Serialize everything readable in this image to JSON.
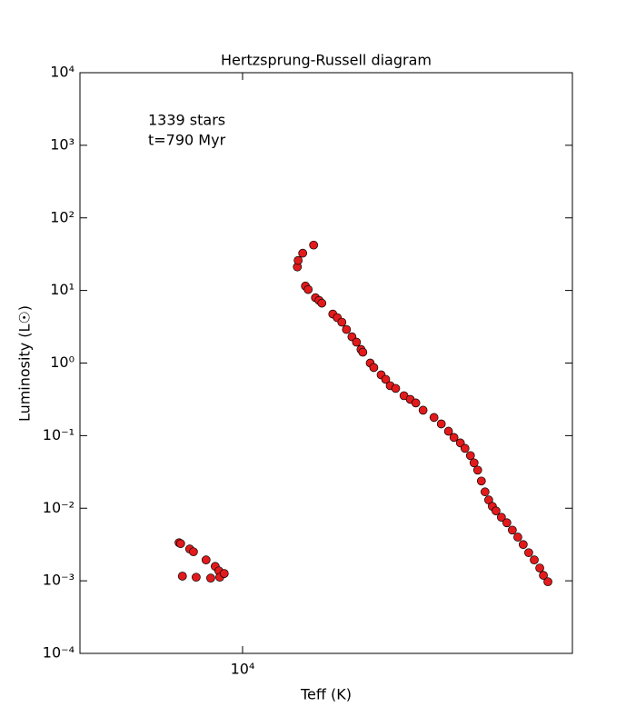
{
  "chart_data": {
    "type": "scatter",
    "title": "Hertzsprung-Russell diagram",
    "x_label": "Teff (K)",
    "y_label": "Luminosity (L☉)",
    "annotations": [
      "1339 stars",
      "t=790 Myr"
    ],
    "x_log": true,
    "y_log": true,
    "color": "#e31a1c",
    "xlim": [
      19000,
      2720
    ],
    "ylim": [
      0.0001,
      10000
    ],
    "xticks": [
      {
        "value": 10000,
        "label": "10⁴"
      }
    ],
    "yticks": [
      {
        "value": 0.0001,
        "label": "10⁻⁴"
      },
      {
        "value": 0.001,
        "label": "10⁻³"
      },
      {
        "value": 0.01,
        "label": "10⁻²"
      },
      {
        "value": 0.1,
        "label": "10⁻¹"
      },
      {
        "value": 1,
        "label": "10⁰"
      },
      {
        "value": 10,
        "label": "10¹"
      },
      {
        "value": 100,
        "label": "10²"
      },
      {
        "value": 1000,
        "label": "10³"
      },
      {
        "value": 10000,
        "label": "10⁴"
      }
    ],
    "x": [
      12850,
      12770,
      12320,
      12140,
      12680,
      12010,
      11550,
      11340,
      11140,
      10980,
      10940,
      10750,
      8055,
      8030,
      7887,
      7554,
      7802,
      7718,
      7499,
      7393,
      7313,
      7004,
      6880,
      6757,
      6636,
      6494,
      6378,
      6266,
      6221,
      6042,
      5957,
      5787,
      5684,
      5583,
      5464,
      5288,
      5158,
      5047,
      4904,
      4697,
      4564,
      4436,
      4341,
      4233,
      4156,
      4068,
      4010,
      3953,
      3896,
      3840,
      3785,
      3731,
      3678,
      3600,
      3523,
      3448,
      3374,
      3303,
      3232,
      3162,
      3094,
      3050,
      2996
    ],
    "values": [
      0.00335,
      0.00325,
      0.00274,
      0.00251,
      0.00116,
      0.00112,
      0.00194,
      0.00109,
      0.00158,
      0.00137,
      0.00112,
      0.00126,
      21.1,
      25.9,
      32.6,
      42.2,
      11.5,
      10.3,
      7.94,
      7.29,
      6.68,
      4.73,
      4.22,
      3.65,
      2.9,
      2.3,
      1.94,
      1.54,
      1.41,
      1.0,
      0.866,
      0.688,
      0.596,
      0.487,
      0.447,
      0.355,
      0.316,
      0.282,
      0.224,
      0.178,
      0.145,
      0.115,
      0.0944,
      0.0794,
      0.0668,
      0.0531,
      0.0422,
      0.0335,
      0.0237,
      0.0168,
      0.013,
      0.0106,
      0.00918,
      0.0075,
      0.0063,
      0.005,
      0.004,
      0.00316,
      0.00244,
      0.00194,
      0.0015,
      0.00119,
      0.00097
    ]
  }
}
